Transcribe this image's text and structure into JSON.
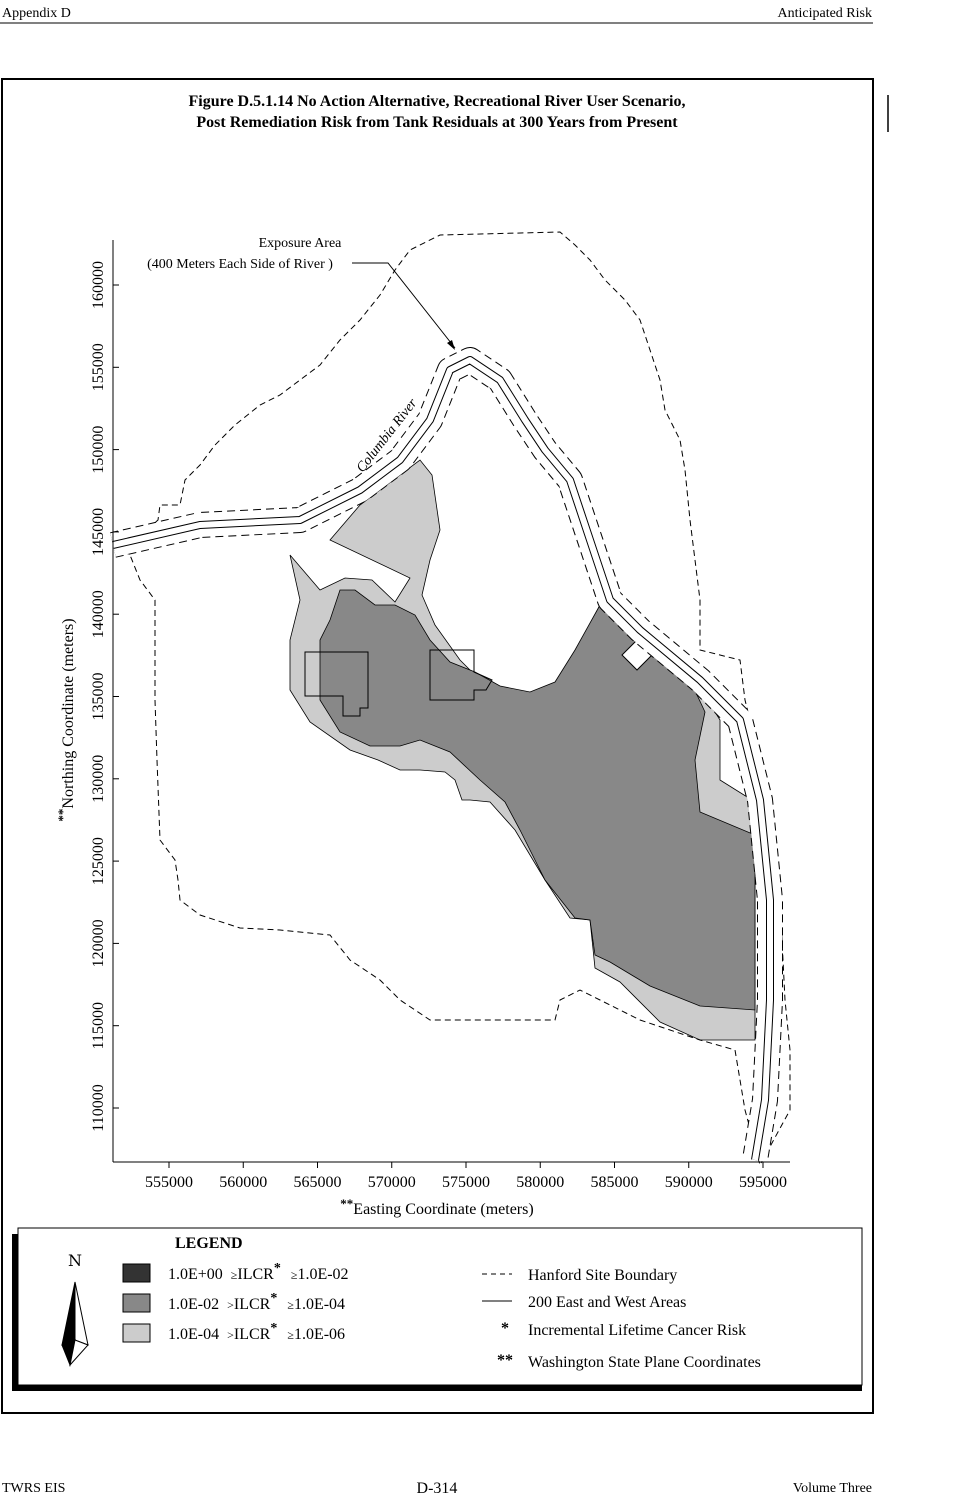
{
  "header": {
    "left": "Appendix D",
    "right": "Anticipated Risk"
  },
  "figure": {
    "title": [
      "Figure D.5.1.14  No Action Alternative, Recreational River User Scenario,",
      "Post Remediation Risk from Tank Residuals at 300 Years from Present"
    ],
    "annotations": {
      "exposure_area": "Exposure Area",
      "exposure_note": "(400 Meters Each Side of River )",
      "river": "Columbia River"
    },
    "x_axis": {
      "label_prefix": "**",
      "label": "Easting Coordinate (meters)",
      "ticks": [
        555000,
        560000,
        565000,
        570000,
        575000,
        580000,
        585000,
        590000,
        595000
      ]
    },
    "y_axis": {
      "label_prefix": "**",
      "label": "Northing Coordinate (meters)",
      "ticks": [
        110000,
        115000,
        120000,
        125000,
        130000,
        135000,
        140000,
        145000,
        150000,
        155000,
        160000
      ]
    },
    "legend": {
      "title": "LEGEND",
      "north": "N",
      "risk": [
        {
          "high": "1.0E+00",
          "op1": "≥",
          "term": "ILCR",
          "mark": "*",
          "op2": "≥",
          "low": "1.0E-02"
        },
        {
          "high": "1.0E-02",
          "op1": ">",
          "term": "ILCR",
          "mark": "*",
          "op2": "≥",
          "low": "1.0E-04"
        },
        {
          "high": "1.0E-04",
          "op1": ">",
          "term": "ILCR",
          "mark": "*",
          "op2": "≥",
          "low": "1.0E-06"
        }
      ],
      "symbols": [
        {
          "text": "Hanford Site Boundary"
        },
        {
          "text": "200 East and West Areas"
        },
        {
          "symbol": "*",
          "text": "Incremental Lifetime Cancer Risk"
        },
        {
          "symbol": "**",
          "text": "Washington State Plane Coordinates"
        }
      ]
    }
  },
  "footer": {
    "left": "TWRS EIS",
    "center": "D-314",
    "right": "Volume Three"
  }
}
